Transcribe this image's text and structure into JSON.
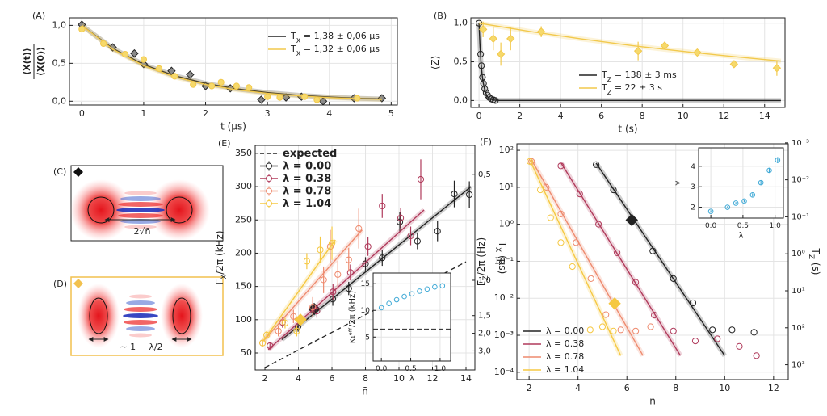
{
  "chart_data": [
    {
      "type": "scatter",
      "title": "(A)",
      "xlabel": "t (μs)",
      "ylabel": [
        "⟨X(t)⟩",
        "⟨X(0)⟩"
      ],
      "xlim": [
        -0.2,
        5.1
      ],
      "ylim": [
        -0.05,
        1.1
      ],
      "xticks": [
        0,
        1,
        2,
        3,
        4,
        5
      ],
      "yticks": [
        {
          "value": 0,
          "label": "0,0"
        },
        {
          "value": 0.5,
          "label": "0,5"
        },
        {
          "value": 1,
          "label": "1,0"
        }
      ],
      "grid": true,
      "legend": "upper right",
      "series": [
        {
          "name": "T_{X} = 1,38 ± 0,06 μs",
          "color": "#222222",
          "marker": "diamond",
          "marker_fill": "#8a8a8a",
          "x": [
            0,
            0.5,
            0.85,
            1.0,
            1.45,
            1.75,
            2.0,
            2.4,
            2.9,
            3.3,
            3.55,
            3.9,
            4.4,
            4.85
          ],
          "values": [
            1.01,
            0.71,
            0.63,
            0.49,
            0.4,
            0.35,
            0.2,
            0.17,
            0.02,
            0.05,
            0.06,
            0.0,
            0.04,
            0.04
          ],
          "fit_x": [
            0,
            0.5,
            1,
            1.5,
            2,
            2.5,
            3,
            3.5,
            4,
            4.5,
            4.85
          ],
          "fit_values": [
            1,
            0.696,
            0.484,
            0.337,
            0.235,
            0.163,
            0.114,
            0.079,
            0.055,
            0.038,
            0.03
          ]
        },
        {
          "name": "T_{X} = 1,32 ± 0,06 μs",
          "color": "#f2c94c",
          "marker": "circle",
          "marker_fill": "#f6d96b",
          "x": [
            0,
            0.35,
            0.7,
            1.0,
            1.25,
            1.5,
            1.8,
            2.1,
            2.25,
            2.5,
            2.7,
            3.0,
            3.2,
            3.6,
            3.8,
            4.45
          ],
          "values": [
            0.95,
            0.76,
            0.62,
            0.55,
            0.43,
            0.33,
            0.22,
            0.2,
            0.25,
            0.2,
            0.18,
            0.06,
            0.05,
            0.06,
            0.02,
            0.04
          ],
          "fit_x": [
            0,
            0.5,
            1,
            1.5,
            2,
            2.5,
            3,
            3.5,
            4,
            4.5,
            4.85
          ],
          "fit_values": [
            1,
            0.685,
            0.469,
            0.321,
            0.22,
            0.15,
            0.103,
            0.071,
            0.048,
            0.033,
            0.025
          ]
        }
      ]
    },
    {
      "type": "scatter",
      "title": "(B)",
      "xlabel": "t (s)",
      "ylabel": "⟨Z⟩",
      "xlim": [
        -0.4,
        15.0
      ],
      "ylim": [
        -0.09,
        1.07
      ],
      "xticks": [
        0,
        2,
        4,
        6,
        8,
        10,
        12,
        14
      ],
      "yticks": [
        {
          "value": 0,
          "label": "0,0"
        },
        {
          "value": 0.5,
          "label": "0,5"
        },
        {
          "value": 1,
          "label": "1,0"
        }
      ],
      "grid": true,
      "legend": "lower right",
      "series": [
        {
          "name": "T_{Z} = 138 ± 3 ms",
          "color": "#222222",
          "marker": "circle",
          "marker_fill": "none",
          "x": [
            0,
            0.08,
            0.12,
            0.17,
            0.22,
            0.28,
            0.35,
            0.42,
            0.5,
            0.6,
            0.7,
            0.8
          ],
          "values": [
            1.0,
            0.6,
            0.45,
            0.3,
            0.22,
            0.15,
            0.1,
            0.07,
            0.04,
            0.02,
            0.01,
            0.0
          ],
          "fit_x": [
            0,
            0.05,
            0.1,
            0.15,
            0.2,
            0.3,
            0.4,
            0.5,
            0.7,
            1,
            14.8
          ],
          "fit_values": [
            1,
            0.696,
            0.485,
            0.337,
            0.235,
            0.114,
            0.055,
            0.027,
            0.006,
            0.0007,
            0
          ]
        },
        {
          "name": "T_{Z} = 22 ± 3 s",
          "color": "#f2c94c",
          "marker": "diamond",
          "marker_fill": "#f6d96b",
          "x": [
            0.2,
            0.7,
            1.07,
            1.55,
            3.05,
            7.8,
            9.1,
            10.7,
            12.5,
            14.6
          ],
          "values": [
            0.92,
            0.8,
            0.6,
            0.8,
            0.89,
            0.64,
            0.71,
            0.62,
            0.47,
            0.42
          ],
          "errors": [
            0.1,
            0.15,
            0.15,
            0.15,
            0.07,
            0.12,
            0.05,
            0.04,
            0.04,
            0.1
          ],
          "fit_x": [
            0,
            2.5,
            5,
            7.5,
            10,
            12.5,
            14.8
          ],
          "fit_values": [
            1,
            0.893,
            0.797,
            0.711,
            0.635,
            0.567,
            0.51
          ]
        }
      ]
    },
    {
      "type": "scatter",
      "title": "(E)",
      "xlabel": "n̄",
      "ylabel": "Γ_{X}/2π (kHz)",
      "y2label": "T_{X} (μs)",
      "xlim": [
        1.42,
        14.53
      ],
      "ylim": [
        24.5,
        362
      ],
      "xticks": [
        2,
        4,
        6,
        8,
        10,
        12,
        14
      ],
      "yticks": [
        50,
        100,
        150,
        200,
        250,
        300,
        350
      ],
      "y2scale": "reciprocal",
      "y2lim": [
        6.5,
        0.44
      ],
      "y2ticks": [
        {
          "value": 0.5,
          "label": "0,5"
        },
        {
          "value": 1,
          "label": "1,0"
        },
        {
          "value": 1.5,
          "label": "1,5"
        },
        {
          "value": 2,
          "label": "2,0"
        },
        {
          "value": 3,
          "label": "3,0"
        }
      ],
      "grid": true,
      "legend": "upper left",
      "series": [
        {
          "name": "expected",
          "color": "#222222",
          "style": "dashed",
          "x": [
            2,
            14
          ],
          "values": [
            28,
            187
          ]
        },
        {
          "name": "λ = 0.00",
          "color": "#222222",
          "marker": "circle",
          "marker_fill": "none",
          "x": [
            3.98,
            6.05,
            7.0,
            8.0,
            9.0,
            10.05,
            11.1,
            12.3,
            13.3,
            14.2
          ],
          "values": [
            90,
            131,
            147,
            184,
            193,
            247,
            218,
            233,
            289,
            288
          ],
          "errors": [
            8,
            10,
            10,
            10,
            12,
            15,
            12,
            15,
            20,
            20
          ],
          "fit_x": [
            3,
            14.3
          ],
          "fit_values": [
            70,
            300
          ],
          "highlight_x": 4.94,
          "highlight_value": 116
        },
        {
          "name": "λ = 0.38",
          "color": "#b03a5b",
          "marker": "circle",
          "marker_fill": "none",
          "x": [
            2.3,
            3.05,
            5.1,
            6.06,
            7.1,
            8.15,
            9.0,
            10.1,
            10.7,
            11.3
          ],
          "values": [
            61,
            96,
            113,
            142,
            171,
            210,
            271,
            253,
            226,
            311
          ],
          "errors": [
            6,
            8,
            10,
            12,
            12,
            14,
            18,
            15,
            14,
            30
          ],
          "fit_x": [
            2.2,
            11.5
          ],
          "fit_values": [
            55,
            265
          ]
        },
        {
          "name": "λ = 0.78",
          "color": "#ee8a6e",
          "marker": "circle",
          "marker_fill": "none",
          "x": [
            1.86,
            2.8,
            3.7,
            4.85,
            5.5,
            5.9,
            6.35,
            7.0,
            7.6
          ],
          "values": [
            65,
            83,
            105,
            119,
            160,
            210,
            168,
            190,
            237
          ],
          "errors": [
            5,
            8,
            10,
            15,
            20,
            25,
            20,
            18,
            30
          ],
          "fit_x": [
            1.9,
            7.8
          ],
          "fit_values": [
            68,
            235
          ]
        },
        {
          "name": "λ = 1.04",
          "color": "#f5c842",
          "marker": "circle",
          "marker_fill": "none",
          "x": [
            1.86,
            2.1,
            3.2,
            3.9,
            4.5,
            5.3,
            6.0
          ],
          "values": [
            65,
            77,
            95,
            83,
            188,
            205,
            215
          ],
          "errors": [
            5,
            6,
            8,
            8,
            12,
            20,
            25
          ],
          "fit_x": [
            1.9,
            6.2
          ],
          "fit_values": [
            68,
            220
          ],
          "highlight_x": 4.12,
          "highlight_value": 100
        }
      ]
    },
    {
      "type": "scatter",
      "xlabel": "λ",
      "ylabel": "κ₁ᵉᶠᶠ/2π (kHz)",
      "xlim": [
        -0.14,
        1.18
      ],
      "ylim": [
        0.5,
        17
      ],
      "xticks": [
        {
          "value": 0,
          "label": "0.0"
        },
        0.5,
        {
          "value": 1,
          "label": "1.0"
        }
      ],
      "yticks": [
        5,
        10,
        15
      ],
      "grid": true,
      "hline": 6.5,
      "series": [
        {
          "color": "#3fa9d6",
          "marker": "circle",
          "marker_fill": "none",
          "x": [
            0,
            0.13,
            0.26,
            0.39,
            0.52,
            0.65,
            0.78,
            0.91,
            1.04
          ],
          "values": [
            10.5,
            11.3,
            12.0,
            12.6,
            13.1,
            13.6,
            14.0,
            14.4,
            14.6
          ]
        }
      ]
    },
    {
      "type": "scatter",
      "title": "(F)",
      "xlabel": "n̄",
      "ylabel": "Γ_{Z}/2π (Hz)",
      "y2label": "T_{Z} (s)",
      "xlim": [
        1.5,
        12.6
      ],
      "ylim": [
        6.3e-05,
        150
      ],
      "ylog": true,
      "xticks": [
        2,
        4,
        6,
        8,
        10,
        12
      ],
      "yticks": [
        {
          "value": 0.0001,
          "label": "10⁻⁴"
        },
        {
          "value": 0.001,
          "label": "10⁻³"
        },
        {
          "value": 0.01,
          "label": "10⁻²"
        },
        {
          "value": 0.1,
          "label": "10⁻¹"
        },
        {
          "value": 1,
          "label": "10⁰"
        },
        {
          "value": 10,
          "label": "10¹"
        },
        {
          "value": 100,
          "label": "10²"
        }
      ],
      "y2scale": "log",
      "y2lim": [
        2526,
        0.00106
      ],
      "y2ticks": [
        {
          "value": 0.001,
          "label": "10⁻³"
        },
        {
          "value": 0.01,
          "label": "10⁻²"
        },
        {
          "value": 0.1,
          "label": "10⁻¹"
        },
        {
          "value": 1,
          "label": "10⁰"
        },
        {
          "value": 10,
          "label": "10¹"
        },
        {
          "value": 100,
          "label": "10²"
        },
        {
          "value": 1000,
          "label": "10³"
        }
      ],
      "grid": true,
      "legend": "lower left",
      "series": [
        {
          "name": "λ = 0.00",
          "color": "#222222",
          "marker": "circle",
          "marker_fill": "none",
          "x": [
            4.74,
            5.45,
            7.06,
            7.9,
            8.7,
            9.5,
            10.3,
            11.2
          ],
          "values": [
            41,
            8.5,
            0.19,
            0.034,
            0.0075,
            0.0014,
            0.0014,
            0.0012
          ],
          "fit_x": [
            4.74,
            10.0
          ],
          "fit_values": [
            45,
            0.00028
          ],
          "highlight_x": 6.2,
          "highlight_value": 1.3
        },
        {
          "name": "λ = 0.38",
          "color": "#b03a5b",
          "marker": "circle",
          "marker_fill": "none",
          "x": [
            3.3,
            4.07,
            4.84,
            5.6,
            6.36,
            7.12,
            7.9,
            8.8,
            9.7,
            10.6,
            11.3
          ],
          "values": [
            38,
            6.6,
            1.0,
            0.17,
            0.027,
            0.0035,
            0.0013,
            0.0007,
            0.0008,
            0.0005,
            0.00028
          ],
          "fit_x": [
            3.31,
            8.19
          ],
          "fit_values": [
            45,
            0.00028
          ]
        },
        {
          "name": "λ = 0.78",
          "color": "#ee8a6e",
          "marker": "circle",
          "marker_fill": "none",
          "x": [
            2.1,
            2.7,
            3.3,
            3.92,
            4.53,
            5.14,
            5.75,
            6.36,
            6.97
          ],
          "values": [
            50,
            10,
            1.9,
            0.32,
            0.034,
            0.0036,
            0.0014,
            0.0013,
            0.0017
          ],
          "fit_x": [
            2.1,
            6.66
          ],
          "fit_values": [
            55,
            0.00028
          ]
        },
        {
          "name": "λ = 1.04",
          "color": "#f5c842",
          "marker": "circle",
          "marker_fill": "none",
          "x": [
            2.03,
            2.46,
            2.88,
            3.3,
            3.77,
            4.5,
            5.0,
            5.45
          ],
          "values": [
            50,
            8.5,
            1.5,
            0.32,
            0.072,
            0.0014,
            0.0017,
            0.0013
          ],
          "fit_x": [
            2.03,
            5.75
          ],
          "fit_values": [
            55,
            0.00028
          ],
          "highlight_x": 5.5,
          "highlight_value": 0.0072
        }
      ]
    },
    {
      "type": "scatter",
      "xlabel": "λ",
      "ylabel": "γ",
      "xlim": [
        -0.19,
        1.13
      ],
      "ylim": [
        1.47,
        4.9
      ],
      "xticks": [
        {
          "value": 0,
          "label": "0.0"
        },
        0.5,
        {
          "value": 1,
          "label": "1.0"
        }
      ],
      "yticks": [
        2,
        3,
        4
      ],
      "grid": true,
      "series": [
        {
          "color": "#3fa9d6",
          "marker": "circle",
          "marker_fill": "none",
          "x": [
            0,
            0.26,
            0.39,
            0.52,
            0.65,
            0.78,
            0.91,
            1.04
          ],
          "values": [
            1.8,
            2.0,
            2.2,
            2.3,
            2.6,
            3.2,
            3.8,
            4.3
          ],
          "errors": [
            0.05,
            0.05,
            0.05,
            0.06,
            0.08,
            0.1,
            0.12,
            0.15
          ]
        }
      ]
    }
  ],
  "panels": [
    {
      "label": "(C)",
      "text": "2√n̄"
    },
    {
      "label": "(D)",
      "text": "∼ 1 − λ/2"
    }
  ]
}
